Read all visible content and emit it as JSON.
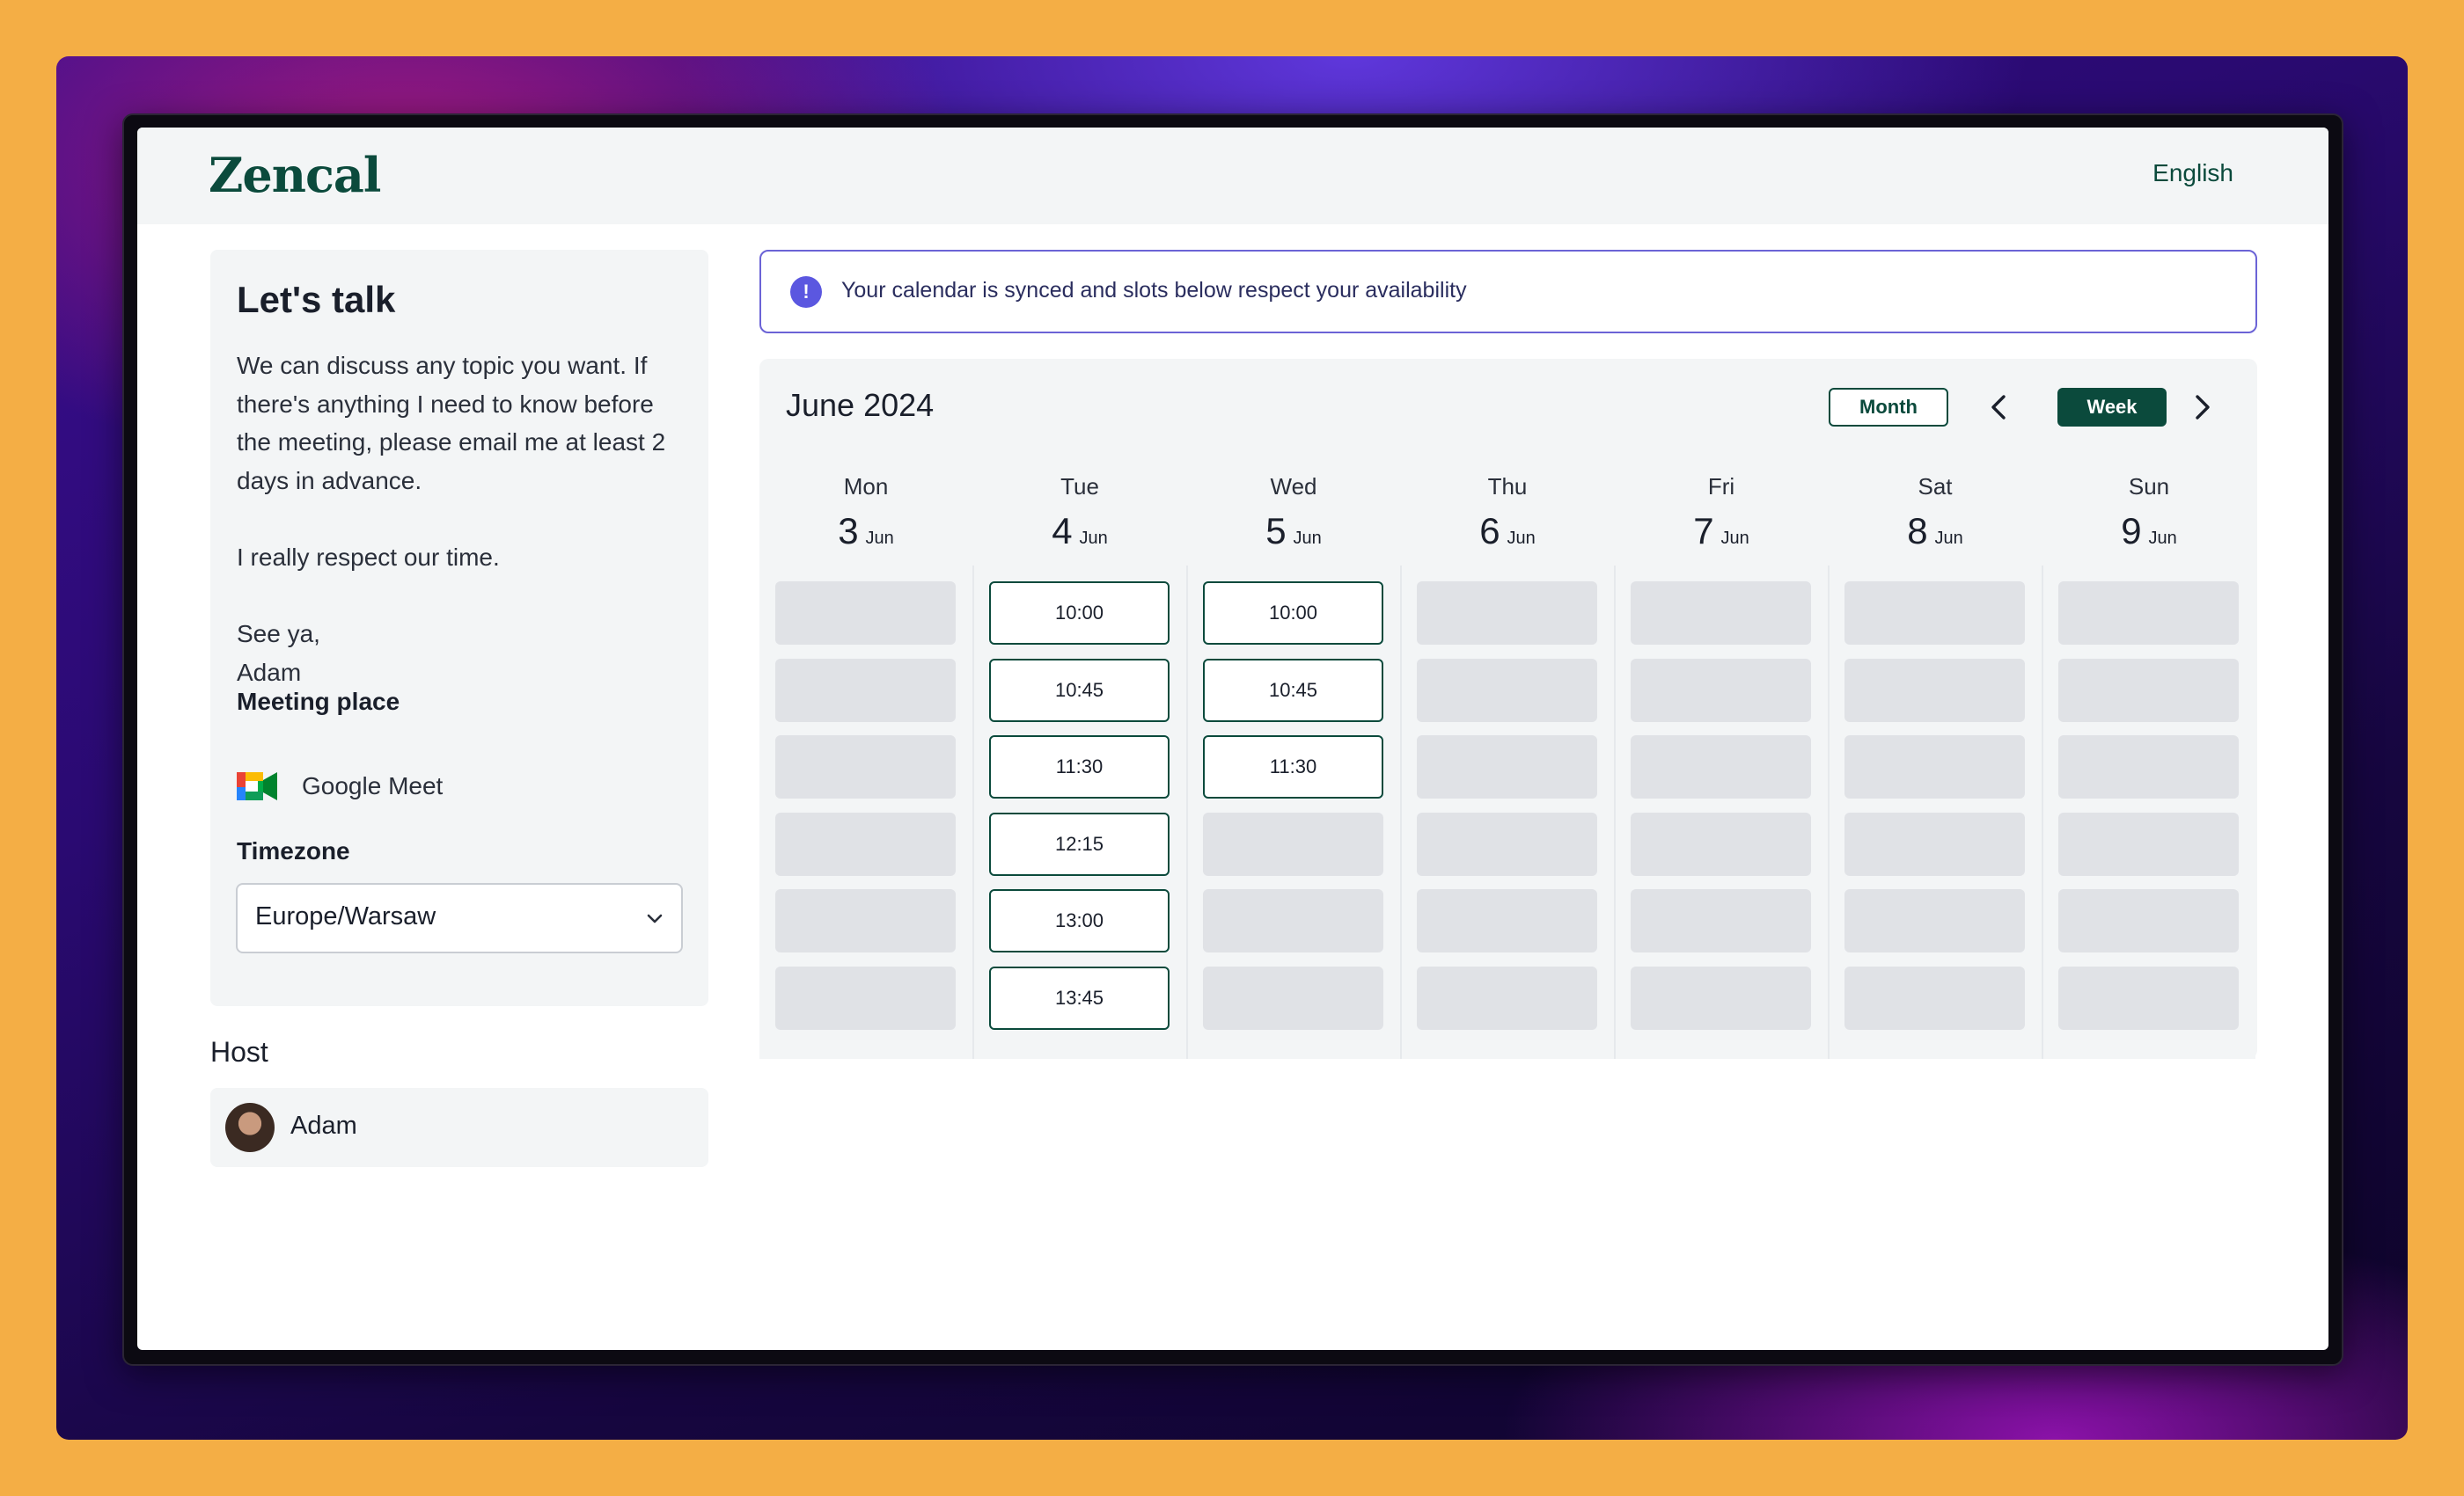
{
  "app": {
    "logo": "Zencal",
    "language": "English"
  },
  "event": {
    "title": "Let's talk",
    "description": "We can discuss any topic you want. If there's anything I need to know before the meeting, please email me at least 2 days in advance.\n\nI really respect our time.\n\nSee ya,\nAdam",
    "meeting_place_label": "Meeting place",
    "meeting_place": "Google Meet",
    "timezone_label": "Timezone",
    "timezone": "Europe/Warsaw"
  },
  "host": {
    "label": "Host",
    "name": "Adam"
  },
  "alert": {
    "text": "Your calendar is synced and slots below respect your availability",
    "icon": "info-icon",
    "icon_glyph": "!"
  },
  "calendar": {
    "title": "June 2024",
    "month_button": "Month",
    "week_button": "Week",
    "days": [
      {
        "name": "Mon",
        "day": "3",
        "month": "Jun",
        "slots": [
          "",
          "",
          "",
          "",
          "",
          ""
        ]
      },
      {
        "name": "Tue",
        "day": "4",
        "month": "Jun",
        "slots": [
          "10:00",
          "10:45",
          "11:30",
          "12:15",
          "13:00",
          "13:45"
        ]
      },
      {
        "name": "Wed",
        "day": "5",
        "month": "Jun",
        "slots": [
          "10:00",
          "10:45",
          "11:30",
          "",
          "",
          ""
        ]
      },
      {
        "name": "Thu",
        "day": "6",
        "month": "Jun",
        "slots": [
          "",
          "",
          "",
          "",
          "",
          ""
        ]
      },
      {
        "name": "Fri",
        "day": "7",
        "month": "Jun",
        "slots": [
          "",
          "",
          "",
          "",
          "",
          ""
        ]
      },
      {
        "name": "Sat",
        "day": "8",
        "month": "Jun",
        "slots": [
          "",
          "",
          "",
          "",
          "",
          ""
        ]
      },
      {
        "name": "Sun",
        "day": "9",
        "month": "Jun",
        "slots": [
          "",
          "",
          "",
          "",
          "",
          ""
        ]
      }
    ]
  },
  "colors": {
    "brand": "#0B4A3C",
    "alert_border": "#6B63D6",
    "alert_icon": "#5B57E0",
    "panel_bg": "#F3F5F6",
    "empty_slot": "#E0E2E6",
    "page_bg": "#F4AE45"
  }
}
